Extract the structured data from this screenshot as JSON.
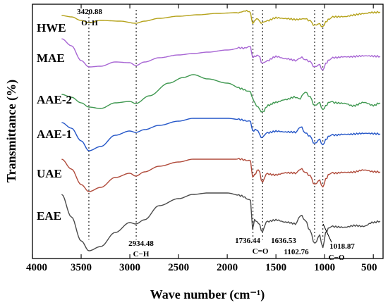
{
  "chart_data": {
    "type": "line",
    "xlabel": "Wave number (cm⁻¹)",
    "ylabel": "Transmittance (%)",
    "xlim": [
      4000,
      400
    ],
    "x_reversed": true,
    "x_ticks": [
      4000,
      3500,
      3000,
      2500,
      2000,
      1500,
      1000,
      500
    ],
    "y_ticks_shown": false,
    "legend": "labels on curves (left)",
    "vlines": [
      3420.88,
      2934.48,
      1736.44,
      1636.53,
      1102.76,
      1018.87
    ],
    "annotations": [
      {
        "text": "3420.88",
        "x": 3420.88
      },
      {
        "text": "O−H",
        "x": 3420.88
      },
      {
        "text": "2934.48",
        "x": 2934.48
      },
      {
        "text": "C−H",
        "x": 2934.48
      },
      {
        "text": "1736.44",
        "x": 1736.44
      },
      {
        "text": "C=O",
        "x": 1690
      },
      {
        "text": "1636.53",
        "x": 1636.53
      },
      {
        "text": "1102.76",
        "x": 1102.76
      },
      {
        "text": "1018.87",
        "x": 1018.87
      },
      {
        "text": "C−O",
        "x": 1060
      }
    ],
    "series": [
      {
        "name": "HWE",
        "color": "#b5a21a",
        "points": [
          [
            3700,
            22
          ],
          [
            3600,
            24
          ],
          [
            3500,
            29
          ],
          [
            3420,
            32
          ],
          [
            3300,
            29
          ],
          [
            3100,
            30
          ],
          [
            2940,
            33
          ],
          [
            2850,
            30
          ],
          [
            2700,
            26
          ],
          [
            2500,
            23
          ],
          [
            2300,
            21
          ],
          [
            2100,
            19
          ],
          [
            1900,
            18
          ],
          [
            1800,
            16
          ],
          [
            1760,
            18
          ],
          [
            1740,
            34
          ],
          [
            1720,
            30
          ],
          [
            1700,
            26
          ],
          [
            1636,
            33
          ],
          [
            1600,
            29
          ],
          [
            1500,
            25
          ],
          [
            1400,
            27
          ],
          [
            1300,
            28
          ],
          [
            1200,
            26
          ],
          [
            1150,
            30
          ],
          [
            1100,
            36
          ],
          [
            1050,
            34
          ],
          [
            1018,
            38
          ],
          [
            990,
            31
          ],
          [
            950,
            26
          ],
          [
            900,
            24
          ],
          [
            800,
            23
          ],
          [
            700,
            21
          ],
          [
            600,
            20
          ],
          [
            500,
            18
          ],
          [
            430,
            17
          ]
        ]
      },
      {
        "name": "MAE",
        "color": "#a866d4",
        "points": [
          [
            3700,
            55
          ],
          [
            3600,
            65
          ],
          [
            3500,
            86
          ],
          [
            3420,
            95
          ],
          [
            3300,
            94
          ],
          [
            3150,
            88
          ],
          [
            3000,
            89
          ],
          [
            2940,
            93
          ],
          [
            2850,
            88
          ],
          [
            2700,
            82
          ],
          [
            2500,
            78
          ],
          [
            2350,
            76
          ],
          [
            2200,
            74
          ],
          [
            2000,
            71
          ],
          [
            1850,
            68
          ],
          [
            1760,
            66
          ],
          [
            1740,
            82
          ],
          [
            1720,
            80
          ],
          [
            1680,
            78
          ],
          [
            1636,
            91
          ],
          [
            1600,
            86
          ],
          [
            1500,
            80
          ],
          [
            1400,
            84
          ],
          [
            1300,
            86
          ],
          [
            1250,
            82
          ],
          [
            1200,
            84
          ],
          [
            1150,
            88
          ],
          [
            1100,
            95
          ],
          [
            1050,
            92
          ],
          [
            1018,
            100
          ],
          [
            990,
            90
          ],
          [
            950,
            84
          ],
          [
            900,
            82
          ],
          [
            800,
            80
          ],
          [
            700,
            80
          ],
          [
            600,
            80
          ],
          [
            500,
            80
          ],
          [
            430,
            80
          ]
        ]
      },
      {
        "name": "AAE-2",
        "color": "#3f9850",
        "points": [
          [
            3700,
            134
          ],
          [
            3600,
            138
          ],
          [
            3500,
            146
          ],
          [
            3420,
            152
          ],
          [
            3300,
            154
          ],
          [
            3150,
            146
          ],
          [
            3000,
            144
          ],
          [
            2940,
            147
          ],
          [
            2800,
            136
          ],
          [
            2600,
            118
          ],
          [
            2450,
            110
          ],
          [
            2350,
            106
          ],
          [
            2200,
            112
          ],
          [
            2000,
            118
          ],
          [
            1850,
            126
          ],
          [
            1760,
            130
          ],
          [
            1740,
            140
          ],
          [
            1700,
            150
          ],
          [
            1636,
            159
          ],
          [
            1580,
            150
          ],
          [
            1500,
            145
          ],
          [
            1400,
            142
          ],
          [
            1300,
            138
          ],
          [
            1250,
            140
          ],
          [
            1200,
            130
          ],
          [
            1150,
            138
          ],
          [
            1100,
            150
          ],
          [
            1050,
            146
          ],
          [
            1018,
            156
          ],
          [
            990,
            150
          ],
          [
            950,
            144
          ],
          [
            900,
            146
          ],
          [
            800,
            146
          ],
          [
            700,
            150
          ],
          [
            600,
            146
          ],
          [
            500,
            150
          ],
          [
            430,
            146
          ]
        ]
      },
      {
        "name": "AAE-1",
        "color": "#2456c8",
        "points": [
          [
            3700,
            174
          ],
          [
            3600,
            182
          ],
          [
            3500,
            200
          ],
          [
            3420,
            214
          ],
          [
            3300,
            208
          ],
          [
            3150,
            192
          ],
          [
            3000,
            186
          ],
          [
            2940,
            188
          ],
          [
            2850,
            184
          ],
          [
            2700,
            178
          ],
          [
            2500,
            172
          ],
          [
            2350,
            168
          ],
          [
            2200,
            168
          ],
          [
            2000,
            168
          ],
          [
            1850,
            170
          ],
          [
            1760,
            172
          ],
          [
            1740,
            186
          ],
          [
            1700,
            184
          ],
          [
            1636,
            196
          ],
          [
            1600,
            188
          ],
          [
            1500,
            186
          ],
          [
            1400,
            188
          ],
          [
            1300,
            188
          ],
          [
            1250,
            180
          ],
          [
            1200,
            188
          ],
          [
            1150,
            194
          ],
          [
            1100,
            204
          ],
          [
            1050,
            198
          ],
          [
            1018,
            206
          ],
          [
            990,
            198
          ],
          [
            950,
            192
          ],
          [
            900,
            192
          ],
          [
            800,
            190
          ],
          [
            700,
            190
          ],
          [
            600,
            190
          ],
          [
            500,
            190
          ],
          [
            430,
            190
          ]
        ]
      },
      {
        "name": "UAE",
        "color": "#b04a3a",
        "points": [
          [
            3700,
            226
          ],
          [
            3600,
            240
          ],
          [
            3500,
            262
          ],
          [
            3420,
            272
          ],
          [
            3300,
            266
          ],
          [
            3150,
            252
          ],
          [
            3000,
            246
          ],
          [
            2940,
            250
          ],
          [
            2850,
            244
          ],
          [
            2700,
            236
          ],
          [
            2500,
            230
          ],
          [
            2350,
            226
          ],
          [
            2200,
            226
          ],
          [
            2000,
            226
          ],
          [
            1850,
            226
          ],
          [
            1760,
            228
          ],
          [
            1740,
            252
          ],
          [
            1720,
            248
          ],
          [
            1680,
            240
          ],
          [
            1636,
            260
          ],
          [
            1600,
            246
          ],
          [
            1500,
            248
          ],
          [
            1400,
            246
          ],
          [
            1300,
            246
          ],
          [
            1250,
            240
          ],
          [
            1200,
            244
          ],
          [
            1150,
            250
          ],
          [
            1100,
            262
          ],
          [
            1050,
            256
          ],
          [
            1018,
            266
          ],
          [
            990,
            254
          ],
          [
            950,
            246
          ],
          [
            900,
            246
          ],
          [
            800,
            244
          ],
          [
            700,
            244
          ],
          [
            600,
            242
          ],
          [
            500,
            244
          ],
          [
            430,
            244
          ]
        ]
      },
      {
        "name": "EAE",
        "color": "#4a4a4a",
        "points": [
          [
            3700,
            276
          ],
          [
            3600,
            308
          ],
          [
            3500,
            342
          ],
          [
            3420,
            356
          ],
          [
            3300,
            350
          ],
          [
            3150,
            330
          ],
          [
            3000,
            316
          ],
          [
            2940,
            318
          ],
          [
            2850,
            312
          ],
          [
            2700,
            292
          ],
          [
            2500,
            282
          ],
          [
            2350,
            276
          ],
          [
            2200,
            274
          ],
          [
            2000,
            274
          ],
          [
            1850,
            278
          ],
          [
            1760,
            284
          ],
          [
            1740,
            326
          ],
          [
            1720,
            312
          ],
          [
            1680,
            316
          ],
          [
            1636,
            330
          ],
          [
            1600,
            314
          ],
          [
            1500,
            312
          ],
          [
            1400,
            316
          ],
          [
            1300,
            318
          ],
          [
            1250,
            306
          ],
          [
            1200,
            312
          ],
          [
            1150,
            328
          ],
          [
            1100,
            346
          ],
          [
            1050,
            334
          ],
          [
            1018,
            352
          ],
          [
            990,
            330
          ],
          [
            950,
            322
          ],
          [
            900,
            322
          ],
          [
            800,
            322
          ],
          [
            700,
            320
          ],
          [
            600,
            322
          ],
          [
            500,
            316
          ],
          [
            430,
            314
          ]
        ]
      }
    ]
  },
  "labels": {
    "hwe": "HWE",
    "mae": "MAE",
    "aae2": "AAE-2",
    "aae1": "AAE-1",
    "uae": "UAE",
    "eae": "EAE"
  }
}
